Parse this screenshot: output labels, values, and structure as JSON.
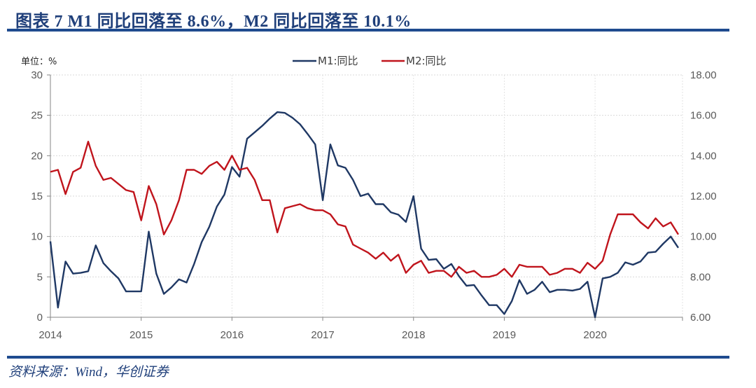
{
  "figure": {
    "title": "图表 7   M1 同比回落至 8.6%，M2 同比回落至 10.1%",
    "source": "资料来源：Wind，华创证券"
  },
  "chart_data": {
    "type": "line",
    "title": "M1 同比回落至 8.6%，M2 同比回落至 10.1%",
    "unit_label": "单位：%",
    "frequency": "monthly",
    "x_start": "2014-01",
    "x_end": "2020-12",
    "x_tick_labels": [
      "2014",
      "2015",
      "2016",
      "2017",
      "2018",
      "2019",
      "2020"
    ],
    "left_axis": {
      "ticks": [
        0,
        5,
        10,
        15,
        20,
        25,
        30
      ],
      "tick_labels": [
        "0",
        "5",
        "10",
        "15",
        "20",
        "25",
        "30"
      ],
      "ylim": [
        0,
        30
      ]
    },
    "right_axis": {
      "ticks": [
        6,
        8,
        10,
        12,
        14,
        16,
        18
      ],
      "tick_labels": [
        "6.00",
        "8.00",
        "10.00",
        "12.00",
        "14.00",
        "16.00",
        "18.00"
      ],
      "ylim": [
        6,
        18
      ]
    },
    "grid": true,
    "legend_position": "top-center",
    "series": [
      {
        "name": "M1:同比",
        "axis": "left",
        "color": "#1f3864",
        "values": [
          9.4,
          1.2,
          6.9,
          5.4,
          5.5,
          5.7,
          8.9,
          6.7,
          5.7,
          4.8,
          3.2,
          3.2,
          3.2,
          10.6,
          5.4,
          2.9,
          3.7,
          4.7,
          4.3,
          6.6,
          9.3,
          11.2,
          13.7,
          15.2,
          18.6,
          17.4,
          22.1,
          22.9,
          23.7,
          24.6,
          25.4,
          25.3,
          24.7,
          23.9,
          22.7,
          21.4,
          14.5,
          21.4,
          18.8,
          18.5,
          17.0,
          15.0,
          15.3,
          14.0,
          14.0,
          13.0,
          12.7,
          11.8,
          15.0,
          8.5,
          7.1,
          7.2,
          6.0,
          6.6,
          5.1,
          3.9,
          4.0,
          2.7,
          1.5,
          1.5,
          0.4,
          2.0,
          4.6,
          2.9,
          3.4,
          4.4,
          3.1,
          3.4,
          3.4,
          3.3,
          3.5,
          4.4,
          0.0,
          4.8,
          5.0,
          5.5,
          6.8,
          6.5,
          6.9,
          8.0,
          8.1,
          9.1,
          10.0,
          8.6
        ]
      },
      {
        "name": "M2:同比",
        "axis": "right",
        "color": "#c0141c",
        "values": [
          13.2,
          13.3,
          12.1,
          13.2,
          13.4,
          14.7,
          13.5,
          12.8,
          12.9,
          12.6,
          12.3,
          12.2,
          10.8,
          12.5,
          11.6,
          10.1,
          10.8,
          11.8,
          13.3,
          13.3,
          13.1,
          13.5,
          13.7,
          13.3,
          14.0,
          13.3,
          13.4,
          12.8,
          11.8,
          11.8,
          10.2,
          11.4,
          11.5,
          11.6,
          11.4,
          11.3,
          11.3,
          11.1,
          10.6,
          10.5,
          9.6,
          9.4,
          9.2,
          8.9,
          9.2,
          8.8,
          9.1,
          8.2,
          8.6,
          8.8,
          8.2,
          8.3,
          8.3,
          8.0,
          8.5,
          8.2,
          8.3,
          8.0,
          8.0,
          8.1,
          8.4,
          8.0,
          8.6,
          8.5,
          8.5,
          8.5,
          8.1,
          8.2,
          8.4,
          8.4,
          8.2,
          8.7,
          8.4,
          8.8,
          10.1,
          11.1,
          11.1,
          11.1,
          10.7,
          10.4,
          10.9,
          10.5,
          10.7,
          10.1
        ]
      }
    ]
  }
}
